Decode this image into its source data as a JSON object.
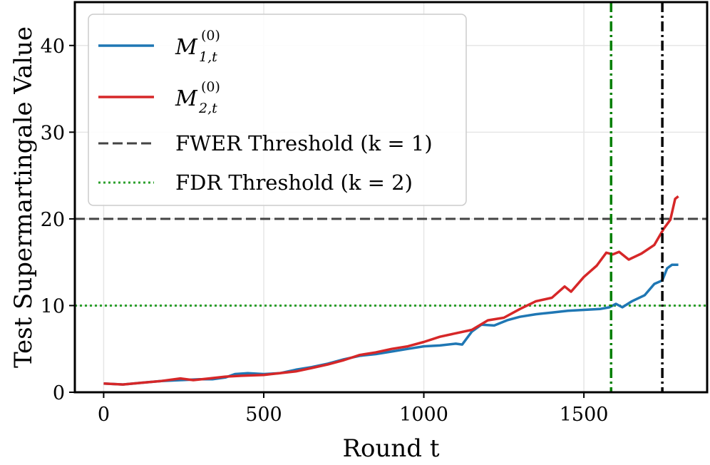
{
  "chart_data": {
    "type": "line",
    "xlabel": "Round t",
    "ylabel": "Test Supermartingale Value",
    "xlim": [
      -90,
      1885
    ],
    "ylim": [
      0,
      45
    ],
    "xticks": [
      0,
      500,
      1000,
      1500
    ],
    "yticks": [
      0,
      10,
      20,
      30,
      40
    ],
    "grid": true,
    "legend_position": "top-left",
    "series": [
      {
        "name": "M_{1,t}^{(0)}",
        "legend_main": "M",
        "legend_sub": "1,t",
        "legend_sup": "(0)",
        "color": "#1f77b4",
        "points": [
          [
            0,
            1.0
          ],
          [
            60,
            0.9
          ],
          [
            120,
            1.1
          ],
          [
            180,
            1.3
          ],
          [
            240,
            1.4
          ],
          [
            300,
            1.5
          ],
          [
            340,
            1.5
          ],
          [
            380,
            1.7
          ],
          [
            410,
            2.1
          ],
          [
            450,
            2.2
          ],
          [
            500,
            2.1
          ],
          [
            550,
            2.2
          ],
          [
            600,
            2.6
          ],
          [
            650,
            2.9
          ],
          [
            700,
            3.3
          ],
          [
            750,
            3.8
          ],
          [
            800,
            4.2
          ],
          [
            850,
            4.4
          ],
          [
            900,
            4.7
          ],
          [
            950,
            5.0
          ],
          [
            1000,
            5.3
          ],
          [
            1050,
            5.4
          ],
          [
            1100,
            5.6
          ],
          [
            1120,
            5.5
          ],
          [
            1150,
            7.0
          ],
          [
            1180,
            7.8
          ],
          [
            1220,
            7.7
          ],
          [
            1260,
            8.3
          ],
          [
            1300,
            8.7
          ],
          [
            1350,
            9.0
          ],
          [
            1400,
            9.2
          ],
          [
            1450,
            9.4
          ],
          [
            1500,
            9.5
          ],
          [
            1550,
            9.6
          ],
          [
            1580,
            9.8
          ],
          [
            1600,
            10.2
          ],
          [
            1620,
            9.8
          ],
          [
            1650,
            10.5
          ],
          [
            1690,
            11.2
          ],
          [
            1720,
            12.5
          ],
          [
            1745,
            12.9
          ],
          [
            1760,
            14.3
          ],
          [
            1775,
            14.7
          ],
          [
            1795,
            14.7
          ]
        ]
      },
      {
        "name": "M_{2,t}^{(0)}",
        "legend_main": "M",
        "legend_sub": "2,t",
        "legend_sup": "(0)",
        "color": "#d62728",
        "points": [
          [
            0,
            1.0
          ],
          [
            60,
            0.9
          ],
          [
            120,
            1.1
          ],
          [
            180,
            1.3
          ],
          [
            240,
            1.6
          ],
          [
            280,
            1.4
          ],
          [
            330,
            1.6
          ],
          [
            380,
            1.8
          ],
          [
            430,
            1.9
          ],
          [
            500,
            2.0
          ],
          [
            550,
            2.2
          ],
          [
            600,
            2.4
          ],
          [
            650,
            2.8
          ],
          [
            700,
            3.2
          ],
          [
            750,
            3.7
          ],
          [
            800,
            4.3
          ],
          [
            850,
            4.6
          ],
          [
            900,
            5.0
          ],
          [
            950,
            5.3
          ],
          [
            1000,
            5.8
          ],
          [
            1050,
            6.4
          ],
          [
            1100,
            6.8
          ],
          [
            1150,
            7.2
          ],
          [
            1200,
            8.3
          ],
          [
            1250,
            8.6
          ],
          [
            1300,
            9.6
          ],
          [
            1350,
            10.5
          ],
          [
            1400,
            10.9
          ],
          [
            1440,
            12.2
          ],
          [
            1460,
            11.6
          ],
          [
            1500,
            13.3
          ],
          [
            1540,
            14.6
          ],
          [
            1570,
            16.1
          ],
          [
            1590,
            15.9
          ],
          [
            1610,
            16.2
          ],
          [
            1640,
            15.3
          ],
          [
            1680,
            16.0
          ],
          [
            1720,
            17.0
          ],
          [
            1750,
            18.9
          ],
          [
            1770,
            19.9
          ],
          [
            1785,
            22.3
          ],
          [
            1795,
            22.6
          ]
        ]
      }
    ],
    "thresholds": [
      {
        "name": "FWER Threshold",
        "param_label": "k = 1",
        "y": 20,
        "color": "#444444",
        "style": "dashed"
      },
      {
        "name": "FDR Threshold",
        "param_label": "k = 2",
        "y": 10,
        "color": "#2ca02c",
        "style": "dotted"
      }
    ],
    "vlines": [
      {
        "x": 1585,
        "color": "#008000",
        "style": "dashdot"
      },
      {
        "x": 1745,
        "color": "#000000",
        "style": "dashdot"
      }
    ]
  }
}
